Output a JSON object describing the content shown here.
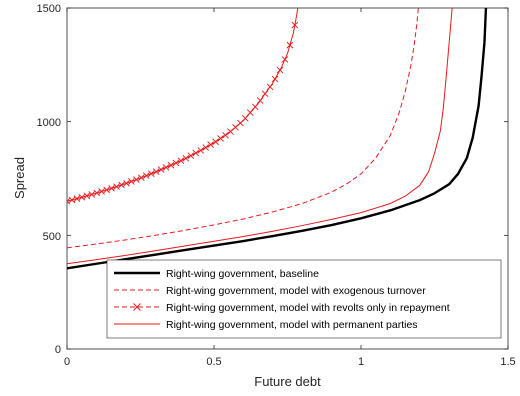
{
  "chart_data": {
    "type": "line",
    "title": "",
    "xlabel": "Future debt",
    "ylabel": "Spread",
    "xlim": [
      0,
      1.5
    ],
    "ylim": [
      0,
      1500
    ],
    "xticks": [
      0,
      0.5,
      1,
      1.5
    ],
    "xtick_labels": [
      "0",
      "0.5",
      "1",
      "1.5"
    ],
    "yticks": [
      0,
      500,
      1000,
      1500
    ],
    "ytick_labels": [
      "0",
      "500",
      "1000",
      "1500"
    ],
    "grid": false,
    "legend_position": "bottom-right",
    "series": [
      {
        "name": "Right-wing government, baseline",
        "color": "#000000",
        "style": "solid-thick",
        "x": [
          0,
          0.1,
          0.2,
          0.3,
          0.4,
          0.5,
          0.6,
          0.7,
          0.8,
          0.9,
          1.0,
          1.1,
          1.2,
          1.25,
          1.3,
          1.33,
          1.36,
          1.38,
          1.4,
          1.41,
          1.42,
          1.425
        ],
        "y": [
          355,
          375,
          395,
          415,
          435,
          455,
          475,
          497,
          520,
          545,
          575,
          610,
          655,
          685,
          725,
          770,
          840,
          930,
          1070,
          1200,
          1350,
          1500
        ]
      },
      {
        "name": "Right-wing government, model with exogenous turnover",
        "color": "#e8191d",
        "style": "dashed",
        "x": [
          0,
          0.1,
          0.2,
          0.3,
          0.4,
          0.5,
          0.6,
          0.7,
          0.8,
          0.9,
          0.95,
          1.0,
          1.05,
          1.1,
          1.13,
          1.15,
          1.17,
          1.18,
          1.19,
          1.195
        ],
        "y": [
          445,
          462,
          480,
          500,
          522,
          546,
          572,
          603,
          640,
          690,
          725,
          770,
          840,
          940,
          1040,
          1130,
          1250,
          1330,
          1430,
          1500
        ]
      },
      {
        "name": "Right-wing government, model with revolts only in repayment",
        "color": "#e8191d",
        "style": "solid-x",
        "x": [
          0,
          0.05,
          0.1,
          0.15,
          0.2,
          0.25,
          0.3,
          0.35,
          0.4,
          0.45,
          0.5,
          0.55,
          0.6,
          0.65,
          0.7,
          0.73,
          0.75,
          0.77,
          0.78,
          0.785
        ],
        "y": [
          650,
          667,
          686,
          706,
          728,
          752,
          778,
          806,
          836,
          870,
          907,
          950,
          1005,
          1080,
          1170,
          1240,
          1300,
          1390,
          1460,
          1500
        ]
      },
      {
        "name": "Right-wing government, model with permanent parties",
        "color": "#e8191d",
        "style": "solid-thin",
        "x": [
          0,
          0.1,
          0.2,
          0.3,
          0.4,
          0.5,
          0.6,
          0.7,
          0.8,
          0.9,
          1.0,
          1.1,
          1.15,
          1.2,
          1.23,
          1.25,
          1.27,
          1.28,
          1.29,
          1.3,
          1.31
        ],
        "y": [
          375,
          393,
          412,
          432,
          453,
          474,
          495,
          518,
          543,
          570,
          600,
          640,
          672,
          720,
          780,
          860,
          960,
          1060,
          1200,
          1350,
          1500
        ]
      }
    ]
  }
}
